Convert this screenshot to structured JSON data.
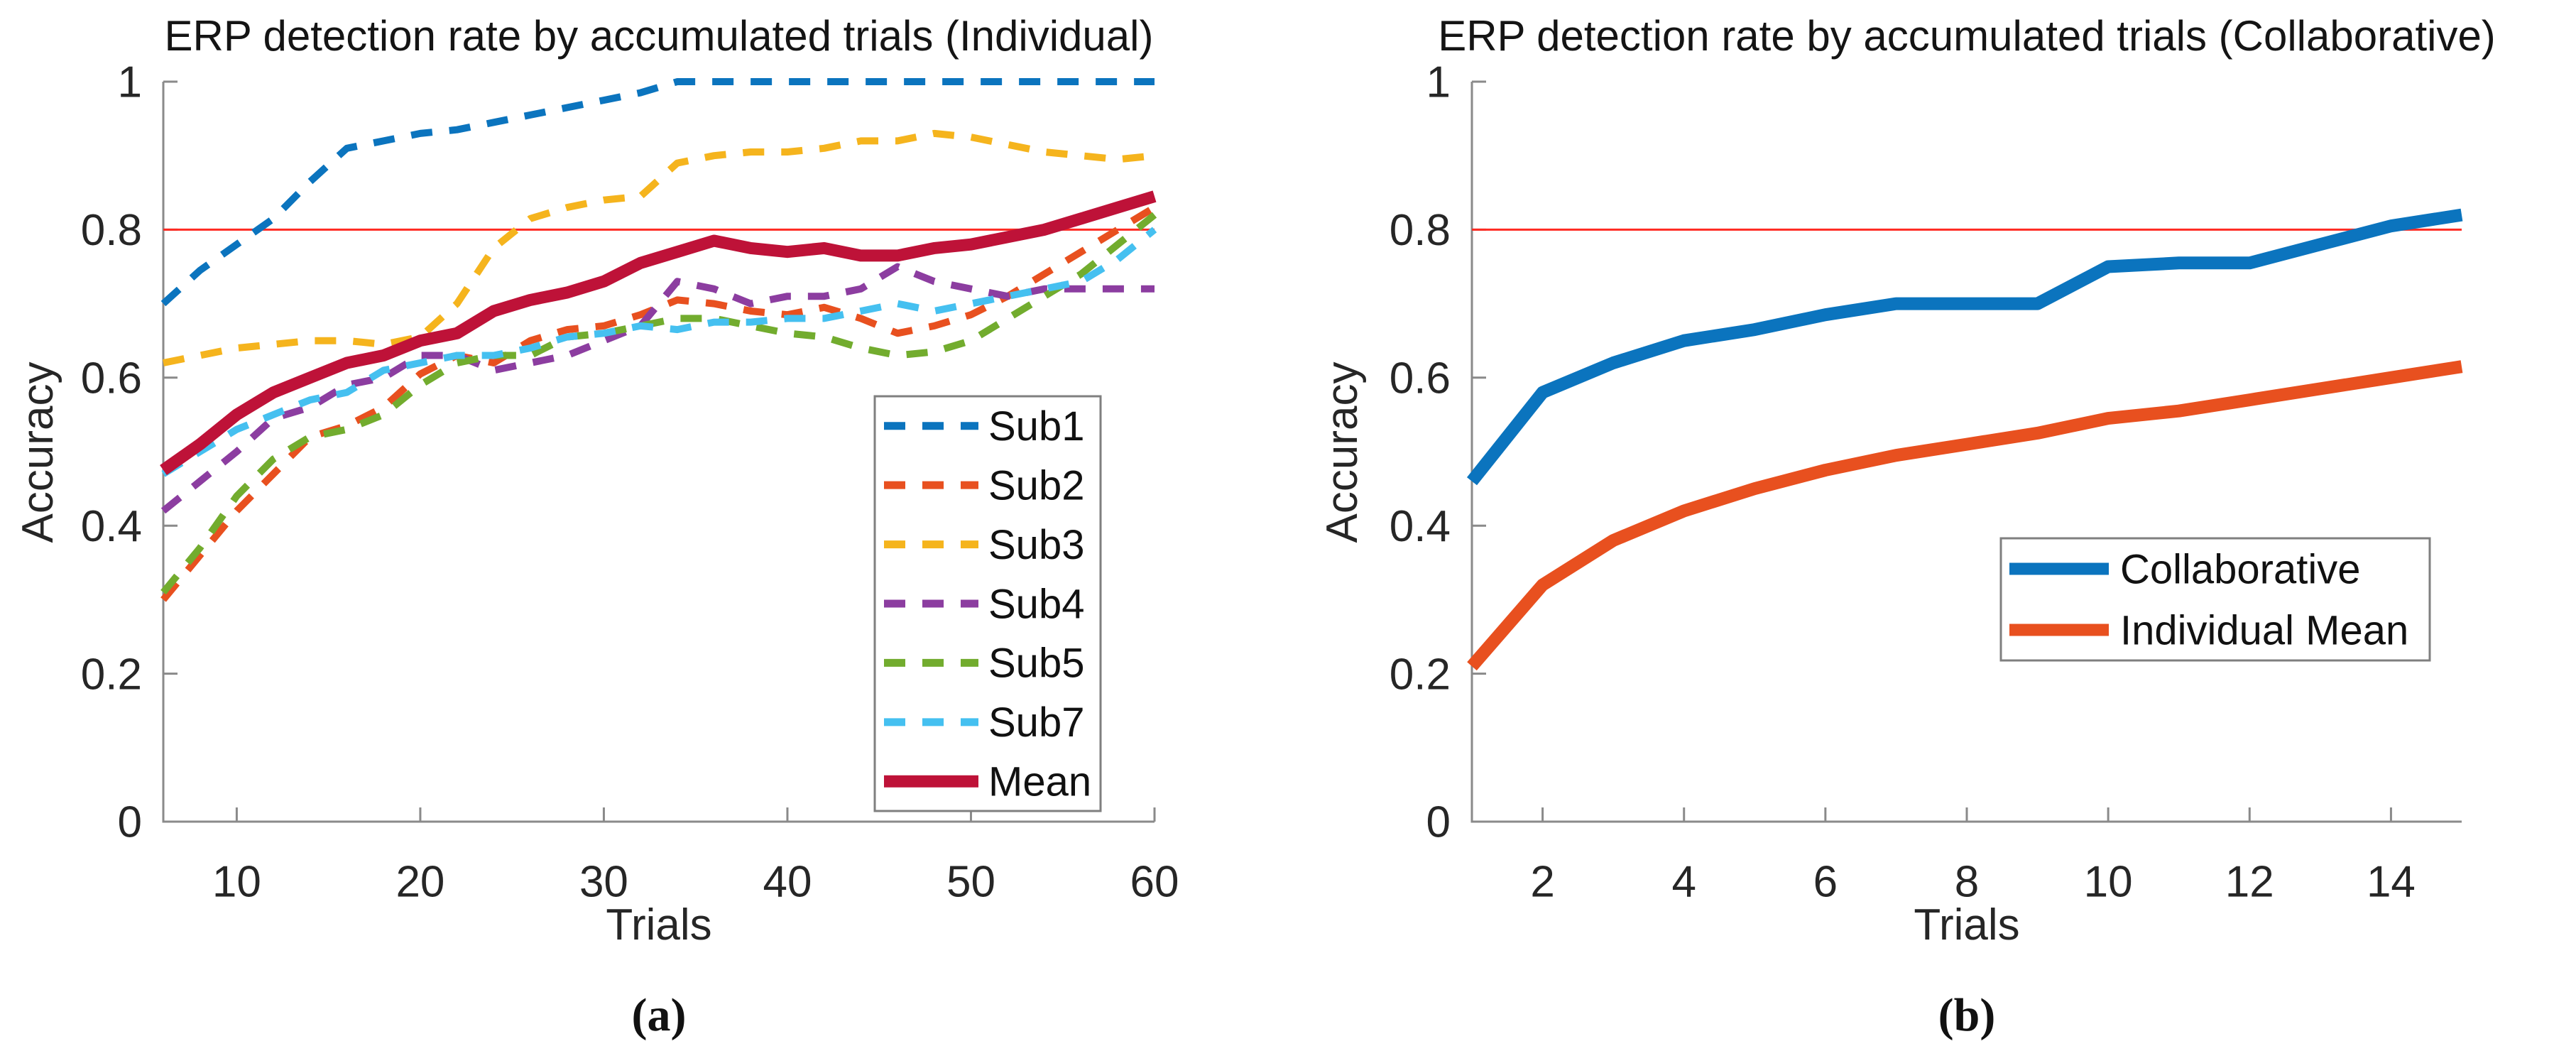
{
  "figure": {
    "background": "#ffffff",
    "axis_color": "#8a8a8a",
    "tick_label_color": "#262626",
    "title_color": "#141414",
    "threshold_color": "#ff2a22",
    "legend_border_color": "#7f7f7f",
    "legend_background": "#ffffff"
  },
  "chart_data": [
    {
      "type": "line",
      "title": "ERP detection rate by accumulated trials (Individual)",
      "xlabel": "Trials",
      "ylabel": "Accuracy",
      "caption": "(a)",
      "xlim": [
        6,
        60
      ],
      "ylim": [
        0,
        1
      ],
      "xticks": [
        10,
        20,
        30,
        40,
        50,
        60
      ],
      "yticks": [
        0,
        0.2,
        0.4,
        0.6,
        0.8,
        1
      ],
      "grid": false,
      "threshold_y": 0.8,
      "legend_position": "inside-lower-right",
      "x": [
        6,
        8,
        10,
        12,
        14,
        16,
        18,
        20,
        22,
        24,
        26,
        28,
        30,
        32,
        34,
        36,
        38,
        40,
        42,
        44,
        46,
        48,
        50,
        52,
        54,
        56,
        58,
        60
      ],
      "series": [
        {
          "name": "Sub1",
          "color": "#0B74BE",
          "line_style": "dashed",
          "line_width": 10,
          "values": [
            0.7,
            0.745,
            0.78,
            0.815,
            0.865,
            0.91,
            0.92,
            0.93,
            0.935,
            0.945,
            0.955,
            0.965,
            0.975,
            0.985,
            1,
            1,
            1,
            1,
            1,
            1,
            1,
            1,
            1,
            1,
            1,
            1,
            1,
            1
          ]
        },
        {
          "name": "Sub2",
          "color": "#E8501F",
          "line_style": "dashed",
          "line_width": 10,
          "values": [
            0.3,
            0.36,
            0.42,
            0.47,
            0.52,
            0.535,
            0.56,
            0.605,
            0.63,
            0.62,
            0.65,
            0.665,
            0.67,
            0.685,
            0.705,
            0.7,
            0.69,
            0.685,
            0.695,
            0.68,
            0.66,
            0.67,
            0.685,
            0.71,
            0.74,
            0.77,
            0.8,
            0.83
          ]
        },
        {
          "name": "Sub3",
          "color": "#F5B41D",
          "line_style": "dashed",
          "line_width": 10,
          "values": [
            0.62,
            0.63,
            0.64,
            0.645,
            0.65,
            0.65,
            0.645,
            0.655,
            0.7,
            0.775,
            0.815,
            0.83,
            0.84,
            0.845,
            0.89,
            0.9,
            0.905,
            0.905,
            0.91,
            0.92,
            0.92,
            0.93,
            0.925,
            0.915,
            0.905,
            0.9,
            0.895,
            0.9
          ]
        },
        {
          "name": "Sub4",
          "color": "#8C3DA0",
          "line_style": "dashed",
          "line_width": 10,
          "values": [
            0.42,
            0.46,
            0.5,
            0.545,
            0.56,
            0.59,
            0.6,
            0.63,
            0.63,
            0.61,
            0.62,
            0.63,
            0.65,
            0.67,
            0.73,
            0.72,
            0.7,
            0.71,
            0.71,
            0.72,
            0.75,
            0.73,
            0.72,
            0.71,
            0.72,
            0.72,
            0.72,
            0.72
          ]
        },
        {
          "name": "Sub5",
          "color": "#72AC2E",
          "line_style": "dashed",
          "line_width": 10,
          "values": [
            0.31,
            0.37,
            0.44,
            0.49,
            0.52,
            0.53,
            0.55,
            0.59,
            0.62,
            0.63,
            0.63,
            0.655,
            0.66,
            0.67,
            0.68,
            0.68,
            0.67,
            0.66,
            0.655,
            0.64,
            0.63,
            0.635,
            0.65,
            0.68,
            0.71,
            0.74,
            0.78,
            0.82
          ]
        },
        {
          "name": "Sub7",
          "color": "#45C0F0",
          "line_style": "dashed",
          "line_width": 10,
          "values": [
            0.47,
            0.5,
            0.53,
            0.55,
            0.57,
            0.58,
            0.61,
            0.62,
            0.63,
            0.63,
            0.64,
            0.655,
            0.66,
            0.67,
            0.665,
            0.675,
            0.675,
            0.68,
            0.68,
            0.69,
            0.7,
            0.69,
            0.7,
            0.71,
            0.72,
            0.73,
            0.76,
            0.8
          ]
        },
        {
          "name": "Mean",
          "color": "#BE1238",
          "line_style": "solid",
          "line_width": 17,
          "values": [
            0.475,
            0.51,
            0.55,
            0.58,
            0.6,
            0.62,
            0.63,
            0.65,
            0.66,
            0.69,
            0.705,
            0.715,
            0.73,
            0.755,
            0.77,
            0.785,
            0.775,
            0.77,
            0.775,
            0.765,
            0.765,
            0.775,
            0.78,
            0.79,
            0.8,
            0.815,
            0.83,
            0.845
          ]
        }
      ]
    },
    {
      "type": "line",
      "title": "ERP detection rate by accumulated trials (Collaborative)",
      "xlabel": "Trials",
      "ylabel": "Accuracy",
      "caption": "(b)",
      "xlim": [
        1,
        15
      ],
      "ylim": [
        0,
        1
      ],
      "xticks": [
        2,
        4,
        6,
        8,
        10,
        12,
        14
      ],
      "yticks": [
        0,
        0.2,
        0.4,
        0.6,
        0.8,
        1
      ],
      "grid": false,
      "threshold_y": 0.8,
      "legend_position": "inside-lower-right",
      "x": [
        1,
        2,
        3,
        4,
        5,
        6,
        7,
        8,
        9,
        10,
        11,
        12,
        13,
        14,
        15
      ],
      "series": [
        {
          "name": "Collaborative",
          "color": "#0B74BE",
          "line_style": "solid",
          "line_width": 18,
          "values": [
            0.46,
            0.58,
            0.62,
            0.65,
            0.665,
            0.685,
            0.7,
            0.7,
            0.7,
            0.75,
            0.755,
            0.755,
            0.78,
            0.805,
            0.82
          ]
        },
        {
          "name": "Individual Mean",
          "color": "#E8501F",
          "line_style": "solid",
          "line_width": 18,
          "values": [
            0.21,
            0.32,
            0.38,
            0.42,
            0.45,
            0.475,
            0.495,
            0.51,
            0.525,
            0.545,
            0.555,
            0.57,
            0.585,
            0.6,
            0.615
          ]
        }
      ]
    }
  ]
}
